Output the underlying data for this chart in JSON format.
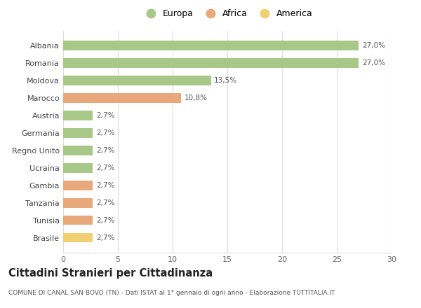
{
  "categories": [
    "Albania",
    "Romania",
    "Moldova",
    "Marocco",
    "Austria",
    "Germania",
    "Regno Unito",
    "Ucraina",
    "Gambia",
    "Tanzania",
    "Tunisia",
    "Brasile"
  ],
  "values": [
    27.0,
    27.0,
    13.5,
    10.8,
    2.7,
    2.7,
    2.7,
    2.7,
    2.7,
    2.7,
    2.7,
    2.7
  ],
  "labels": [
    "27,0%",
    "27,0%",
    "13,5%",
    "10,8%",
    "2,7%",
    "2,7%",
    "2,7%",
    "2,7%",
    "2,7%",
    "2,7%",
    "2,7%",
    "2,7%"
  ],
  "colors": [
    "#a8c888",
    "#a8c888",
    "#a8c888",
    "#e8a87c",
    "#a8c888",
    "#a8c888",
    "#a8c888",
    "#a8c888",
    "#e8a87c",
    "#e8a87c",
    "#e8a87c",
    "#f0d070"
  ],
  "legend_labels": [
    "Europa",
    "Africa",
    "America"
  ],
  "legend_colors": [
    "#a8c888",
    "#e8a87c",
    "#f0d070"
  ],
  "xlim": [
    0,
    30
  ],
  "xticks": [
    0,
    5,
    10,
    15,
    20,
    25,
    30
  ],
  "title": "Cittadini Stranieri per Cittadinanza",
  "subtitle": "COMUNE DI CANAL SAN BOVO (TN) - Dati ISTAT al 1° gennaio di ogni anno - Elaborazione TUTTITALIA.IT",
  "bg_color": "#ffffff",
  "grid_color": "#dddddd",
  "bar_height": 0.55
}
